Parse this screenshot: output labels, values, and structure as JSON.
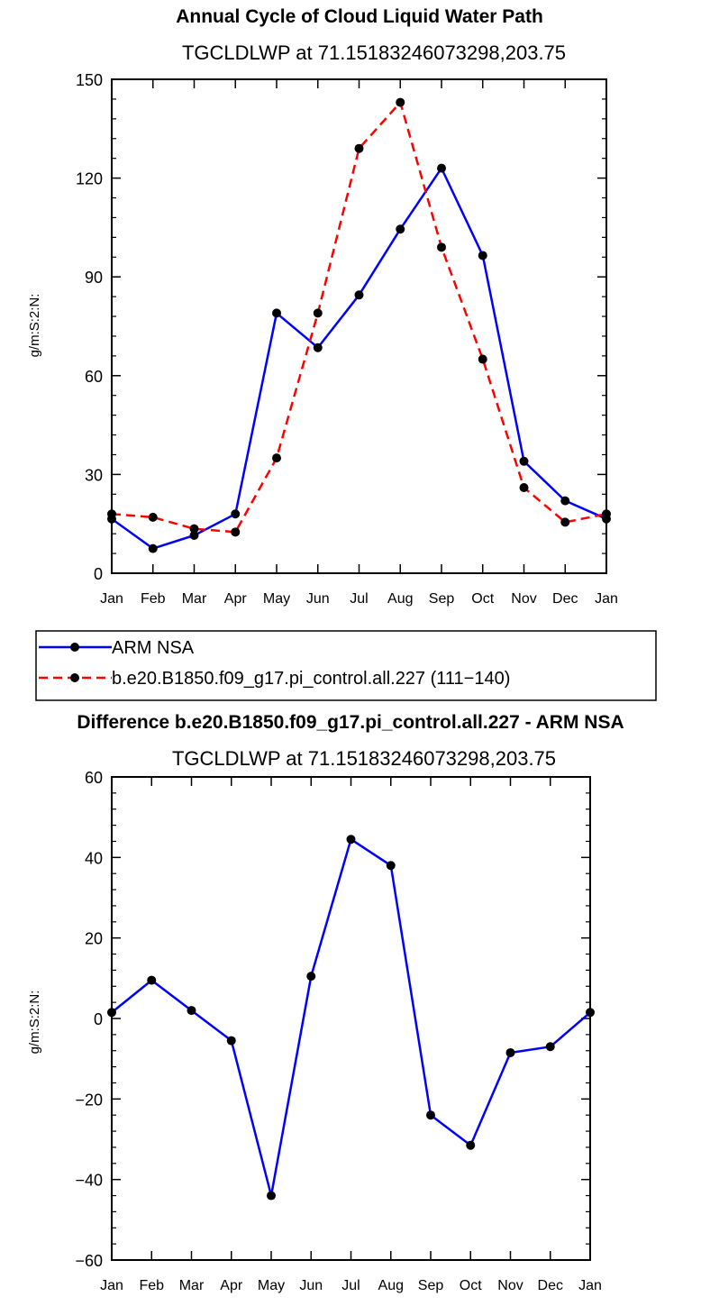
{
  "chart_data": [
    {
      "type": "line",
      "title": "Annual Cycle of Cloud Liquid Water Path",
      "subtitle": "TGCLDLWP  at  71.15183246073298,203.75",
      "xlabel": "",
      "ylabel": "g/m:S:2:N:",
      "categories": [
        "Jan",
        "Feb",
        "Mar",
        "Apr",
        "May",
        "Jun",
        "Jul",
        "Aug",
        "Sep",
        "Oct",
        "Nov",
        "Dec",
        "Jan"
      ],
      "ylim": [
        0,
        150
      ],
      "yticks": [
        0,
        30,
        60,
        90,
        120,
        150
      ],
      "series": [
        {
          "name": "ARM NSA",
          "color": "#0000ff",
          "dash": "solid",
          "values": [
            16.5,
            7.5,
            11.5,
            18,
            79,
            68.5,
            84.5,
            104.5,
            123,
            96.5,
            34,
            22,
            16.5
          ]
        },
        {
          "name": "b.e20.B1850.f09_g17.pi_control.all.227 (111−140)",
          "color": "#ff0000",
          "dash": "dashed",
          "values": [
            18,
            17,
            13.5,
            12.5,
            35,
            79,
            129,
            143,
            99,
            65,
            26,
            15.5,
            18
          ]
        }
      ],
      "legend_position": "below"
    },
    {
      "type": "line",
      "title": "Difference b.e20.B1850.f09_g17.pi_control.all.227 - ARM NSA",
      "subtitle": "TGCLDLWP  at  71.15183246073298,203.75",
      "xlabel": "",
      "ylabel": "g/m:S:2:N:",
      "categories": [
        "Jan",
        "Feb",
        "Mar",
        "Apr",
        "May",
        "Jun",
        "Jul",
        "Aug",
        "Sep",
        "Oct",
        "Nov",
        "Dec",
        "Jan"
      ],
      "ylim": [
        -60,
        60
      ],
      "yticks": [
        -60,
        -40,
        -20,
        0,
        20,
        40,
        60
      ],
      "series": [
        {
          "name": "Difference",
          "color": "#0000ff",
          "dash": "solid",
          "values": [
            1.5,
            9.5,
            2,
            -5.5,
            -44,
            10.5,
            44.5,
            38,
            -24,
            -31.5,
            -8.5,
            -7,
            1.5
          ]
        }
      ]
    }
  ]
}
